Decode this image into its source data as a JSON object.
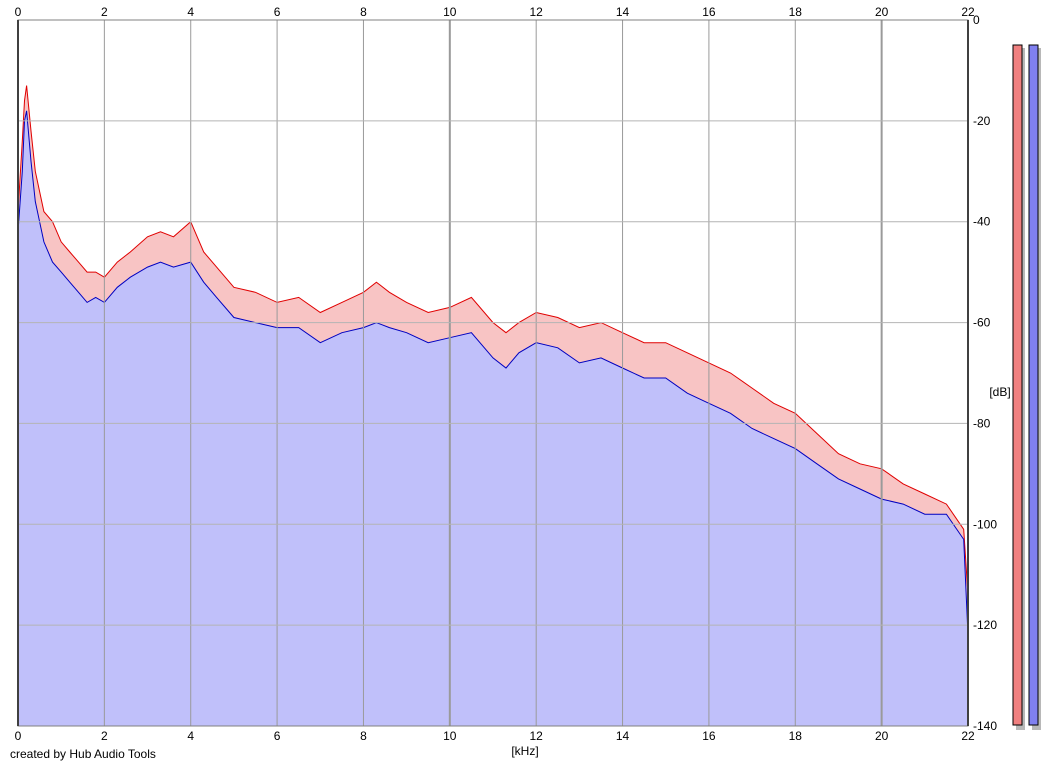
{
  "chart_data": {
    "type": "area",
    "title": "",
    "xlabel": "[kHz]",
    "ylabel": "[dB]",
    "xlim": [
      0,
      22
    ],
    "ylim": [
      -140,
      0
    ],
    "x_ticks": [
      "0",
      "2",
      "4",
      "6",
      "8",
      "10",
      "12",
      "14",
      "16",
      "18",
      "20",
      "22"
    ],
    "y_ticks": [
      "0",
      "-20",
      "-40",
      "-60",
      "-80",
      "-100",
      "-120",
      "-140"
    ],
    "grid": true,
    "series": [
      {
        "color": "#e00000",
        "fill": "#f8c4c4",
        "x": [
          0,
          0.1,
          0.15,
          0.2,
          0.3,
          0.4,
          0.5,
          0.6,
          0.8,
          1.0,
          1.2,
          1.4,
          1.6,
          1.8,
          2.0,
          2.3,
          2.6,
          3.0,
          3.3,
          3.6,
          4.0,
          4.3,
          4.6,
          5.0,
          5.5,
          6.0,
          6.5,
          7.0,
          7.5,
          8.0,
          8.3,
          8.6,
          9.0,
          9.5,
          10.0,
          10.5,
          11.0,
          11.3,
          11.6,
          12.0,
          12.5,
          13.0,
          13.5,
          14.0,
          14.5,
          15.0,
          15.5,
          16.0,
          16.5,
          17.0,
          17.5,
          18.0,
          18.5,
          19.0,
          19.5,
          20.0,
          20.5,
          21.0,
          21.5,
          21.9,
          22.0
        ],
        "y": [
          -38,
          -24,
          -16,
          -13,
          -22,
          -30,
          -34,
          -38,
          -40,
          -44,
          -46,
          -48,
          -50,
          -50,
          -51,
          -48,
          -46,
          -43,
          -42,
          -43,
          -40,
          -46,
          -49,
          -53,
          -54,
          -56,
          -55,
          -58,
          -56,
          -54,
          -52,
          -54,
          -56,
          -58,
          -57,
          -55,
          -60,
          -62,
          -60,
          -58,
          -59,
          -61,
          -60,
          -62,
          -64,
          -64,
          -66,
          -68,
          -70,
          -73,
          -76,
          -78,
          -82,
          -86,
          -88,
          -89,
          -92,
          -94,
          -96,
          -101,
          -114
        ]
      },
      {
        "color": "#0000c0",
        "fill": "#c0c0fa",
        "x": [
          0,
          0.1,
          0.15,
          0.2,
          0.3,
          0.4,
          0.5,
          0.6,
          0.8,
          1.0,
          1.2,
          1.4,
          1.6,
          1.8,
          2.0,
          2.3,
          2.6,
          3.0,
          3.3,
          3.6,
          4.0,
          4.3,
          4.6,
          5.0,
          5.5,
          6.0,
          6.5,
          7.0,
          7.5,
          8.0,
          8.3,
          8.6,
          9.0,
          9.5,
          10.0,
          10.5,
          11.0,
          11.3,
          11.6,
          12.0,
          12.5,
          13.0,
          13.5,
          14.0,
          14.5,
          15.0,
          15.5,
          16.0,
          16.5,
          17.0,
          17.5,
          18.0,
          18.5,
          19.0,
          19.5,
          20.0,
          20.5,
          21.0,
          21.5,
          21.9,
          22.0
        ],
        "y": [
          -42,
          -30,
          -20,
          -18,
          -28,
          -36,
          -40,
          -44,
          -48,
          -50,
          -52,
          -54,
          -56,
          -55,
          -56,
          -53,
          -51,
          -49,
          -48,
          -49,
          -48,
          -52,
          -55,
          -59,
          -60,
          -61,
          -61,
          -64,
          -62,
          -61,
          -60,
          -61,
          -62,
          -64,
          -63,
          -62,
          -67,
          -69,
          -66,
          -64,
          -65,
          -68,
          -67,
          -69,
          -71,
          -71,
          -74,
          -76,
          -78,
          -81,
          -83,
          -85,
          -88,
          -91,
          -93,
          -95,
          -96,
          -98,
          -98,
          -103,
          -122
        ]
      }
    ],
    "level_meters": [
      {
        "color": "#f08080",
        "top_db": -5
      },
      {
        "color": "#8080f0",
        "top_db": -5
      }
    ]
  },
  "footer": {
    "credit": "created by Hub Audio Tools"
  }
}
